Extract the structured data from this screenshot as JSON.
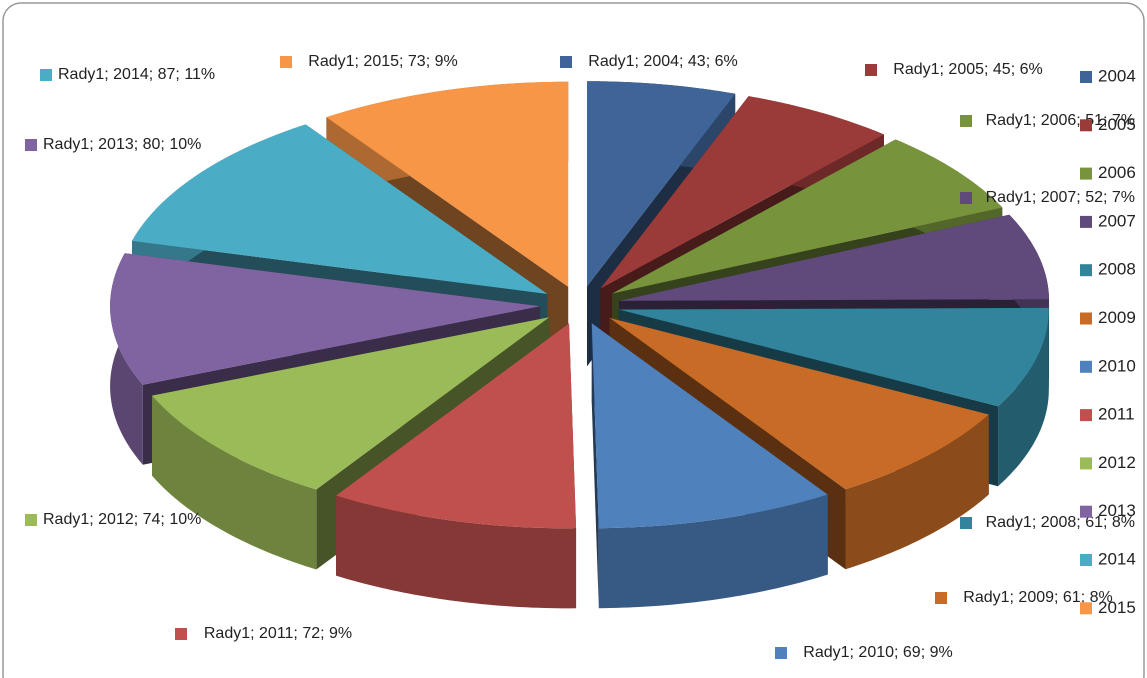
{
  "chart_data": {
    "type": "pie3d",
    "series": [
      {
        "name": "Rady1",
        "values": [
          43,
          45,
          51,
          52,
          61,
          61,
          69,
          72,
          74,
          80,
          87,
          73
        ],
        "value_labels": [
          "Rady1; 2004; 43; 6%",
          "Rady1; 2005; 45; 6%",
          "Rady1; 2006; 51; 7%",
          "Rady1; 2007; 52; 7%",
          "Rady1; 2008; 61; 8%",
          "Rady1; 2009; 61; 8%",
          "Rady1; 2010; 69; 9%",
          "Rady1; 2011; 72; 9%",
          "Rady1; 2012; 74; 10%",
          "Rady1; 2013; 80; 10%",
          "Rady1; 2014; 87; 11%",
          "Rady1; 2015; 73; 9%"
        ]
      }
    ],
    "categories": [
      "2004",
      "2005",
      "2006",
      "2007",
      "2008",
      "2009",
      "2010",
      "2011",
      "2012",
      "2013",
      "2014",
      "2015"
    ],
    "colors": [
      "#3f6497",
      "#9b3b39",
      "#77933c",
      "#604a7b",
      "#31849b",
      "#c76b26",
      "#4f81bd",
      "#c0504d",
      "#9bbb59",
      "#8064a2",
      "#4bacc6",
      "#f79646"
    ],
    "legend": "right"
  }
}
